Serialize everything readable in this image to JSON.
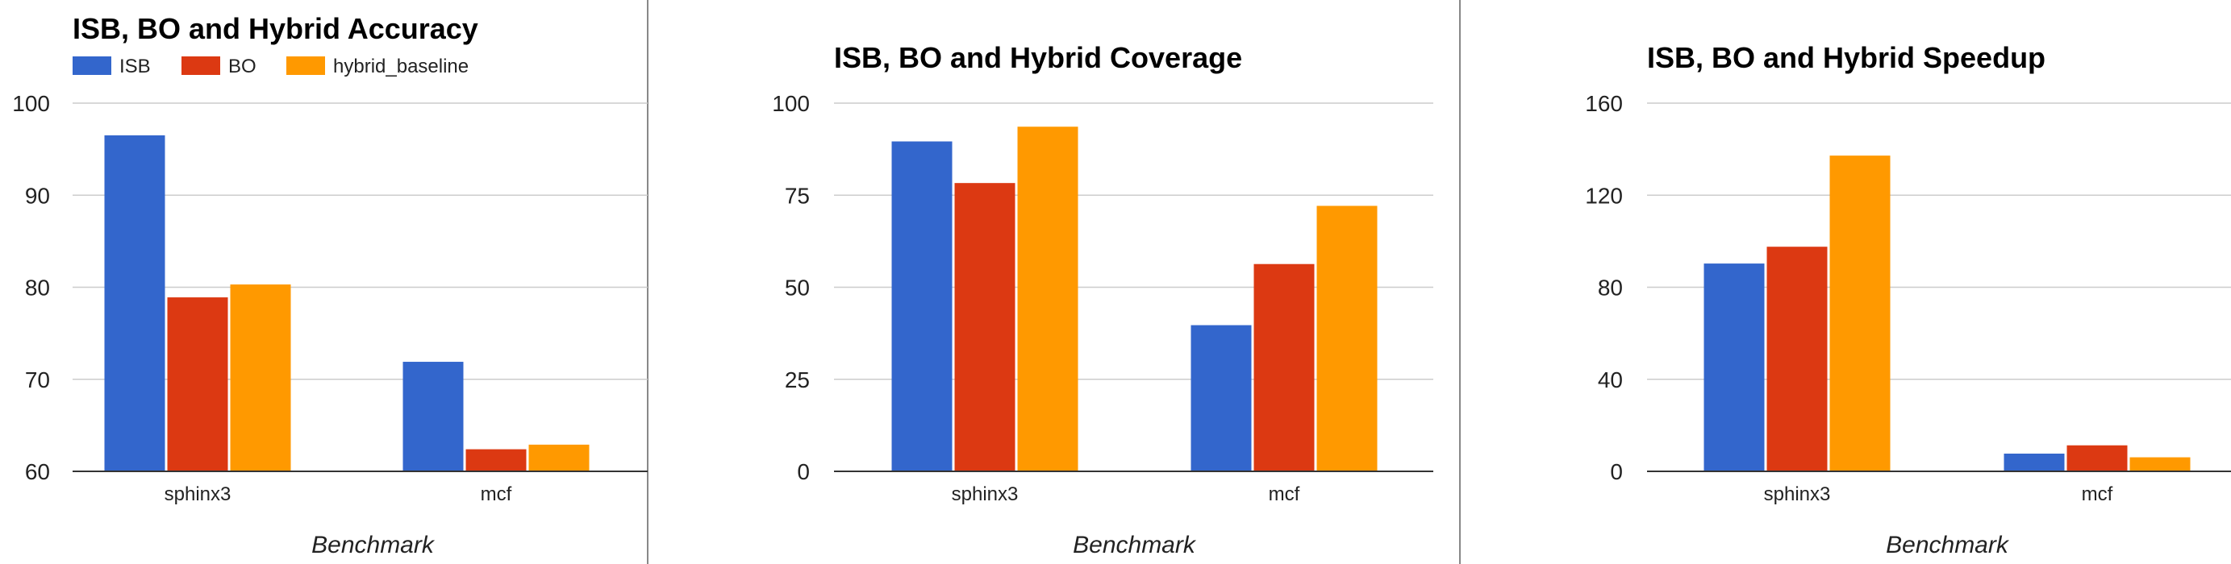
{
  "chart_data": [
    {
      "type": "bar",
      "title": "ISB, BO and Hybrid Accuracy",
      "xlabel": "Benchmark",
      "ylabel": "",
      "categories": [
        "sphinx3",
        "mcf"
      ],
      "series": [
        {
          "name": "ISB",
          "values": [
            96.5,
            71.9
          ]
        },
        {
          "name": "BO",
          "values": [
            78.9,
            62.4
          ]
        },
        {
          "name": "hybrid_baseline",
          "values": [
            80.3,
            62.9
          ]
        }
      ],
      "ylim": [
        60,
        100
      ],
      "yticks": [
        60,
        70,
        80,
        90,
        100
      ],
      "ytick_labels": [
        "60",
        "70",
        "80",
        "90",
        "100"
      ],
      "grid": true,
      "legend": "top-left"
    },
    {
      "type": "bar",
      "title": "ISB, BO and Hybrid Coverage",
      "xlabel": "Benchmark",
      "ylabel": "",
      "categories": [
        "sphinx3",
        "mcf"
      ],
      "series": [
        {
          "name": "ISB",
          "values": [
            89.6,
            39.7
          ]
        },
        {
          "name": "BO",
          "values": [
            78.3,
            56.3
          ]
        },
        {
          "name": "hybrid_baseline",
          "values": [
            93.6,
            72.1
          ]
        }
      ],
      "ylim": [
        0,
        100
      ],
      "yticks": [
        0,
        25,
        50,
        75,
        100
      ],
      "ytick_labels": [
        "0",
        "25",
        "50",
        "75",
        "100"
      ],
      "grid": true,
      "legend": "none"
    },
    {
      "type": "bar",
      "title": "ISB, BO and Hybrid Speedup",
      "xlabel": "Benchmark",
      "ylabel": "",
      "categories": [
        "sphinx3",
        "mcf"
      ],
      "series": [
        {
          "name": "ISB",
          "values": [
            90.3,
            7.7
          ]
        },
        {
          "name": "BO",
          "values": [
            97.6,
            11.3
          ]
        },
        {
          "name": "hybrid_baseline",
          "values": [
            137.2,
            6.1
          ]
        }
      ],
      "ylim": [
        0,
        160
      ],
      "yticks": [
        0,
        40,
        80,
        120,
        160
      ],
      "ytick_labels": [
        "0",
        "40",
        "80",
        "120",
        "160"
      ],
      "grid": true,
      "legend": "none"
    }
  ],
  "colors": {
    "ISB": "#3366cc",
    "BO": "#dc3912",
    "hybrid_baseline": "#ff9900",
    "grid": "#cccccc",
    "axis": "#333333",
    "divider": "#888888"
  }
}
